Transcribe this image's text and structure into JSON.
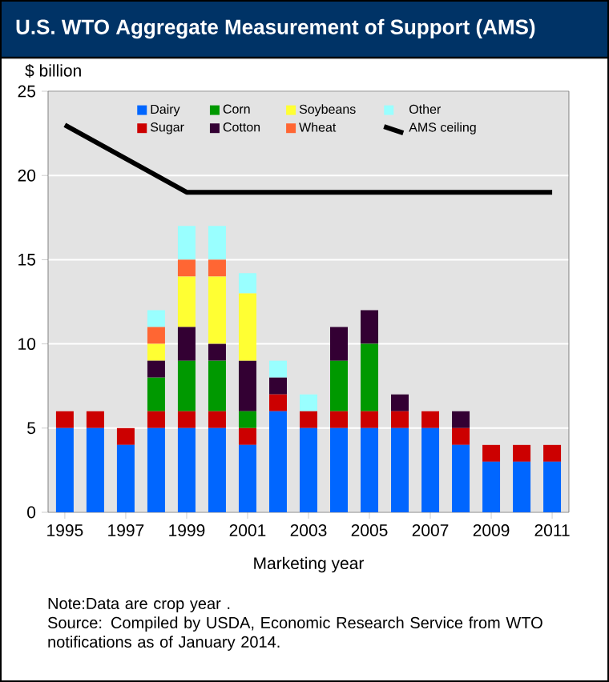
{
  "chart_data": {
    "type": "bar",
    "stacked": true,
    "title": "U.S. WTO Aggregate Measurement of Support (AMS)",
    "ylabel": "$ billion",
    "xlabel": "Marketing year",
    "categories": [
      "1995",
      null,
      "1997",
      null,
      "1999",
      null,
      "2001",
      null,
      "2003",
      null,
      "2005",
      null,
      "2007",
      null,
      "2009",
      null,
      "2011"
    ],
    "series": [
      {
        "name": "Dairy",
        "color": "#0066ff",
        "values": [
          5,
          5,
          4,
          5,
          5,
          5,
          4,
          6,
          5,
          5,
          5,
          5,
          5,
          4,
          3,
          3,
          3
        ]
      },
      {
        "name": "Sugar",
        "color": "#cc0000",
        "values": [
          1,
          1,
          1,
          1,
          1,
          1,
          1,
          1,
          1,
          1,
          1,
          1,
          1,
          1,
          1,
          1,
          1
        ]
      },
      {
        "name": "Corn",
        "color": "#009900",
        "values": [
          0,
          0,
          0,
          2,
          3,
          3,
          1,
          0,
          0,
          3,
          4,
          0,
          0,
          0,
          0,
          0,
          0
        ]
      },
      {
        "name": "Cotton",
        "color": "#330033",
        "values": [
          0,
          0,
          0,
          1,
          2,
          1,
          3,
          1,
          0,
          2,
          2,
          1,
          0,
          1,
          0,
          0,
          0
        ]
      },
      {
        "name": "Soybeans",
        "color": "#ffff33",
        "values": [
          0,
          0,
          0,
          1,
          3,
          4,
          4,
          0,
          0,
          0,
          0,
          0,
          0,
          0,
          0,
          0,
          0
        ]
      },
      {
        "name": "Wheat",
        "color": "#ff6633",
        "values": [
          0,
          0,
          0,
          1,
          1,
          1,
          0,
          0,
          0,
          0,
          0,
          0,
          0,
          0,
          0,
          0,
          0
        ]
      },
      {
        "name": "Other",
        "color": "#99ffff",
        "values": [
          0,
          0,
          0,
          1,
          2,
          2,
          1.2,
          1,
          1,
          0,
          0,
          0,
          0,
          0,
          0,
          0,
          0
        ]
      },
      {
        "name": "AMS ceiling",
        "type": "line",
        "color": "#000000",
        "values": [
          23,
          22,
          21,
          20,
          19,
          19,
          19,
          19,
          19,
          19,
          19,
          19,
          19,
          19,
          19,
          19,
          19
        ]
      }
    ],
    "ylim": [
      0,
      25
    ],
    "yticks": [
      0,
      5,
      10,
      15,
      20,
      25
    ],
    "grid": "y",
    "legend": "top",
    "annotations": [
      "Note:Data are crop year .",
      "Source: Compiled by USDA, Economic Research  Service from WTO notifications as of January 2014."
    ]
  }
}
